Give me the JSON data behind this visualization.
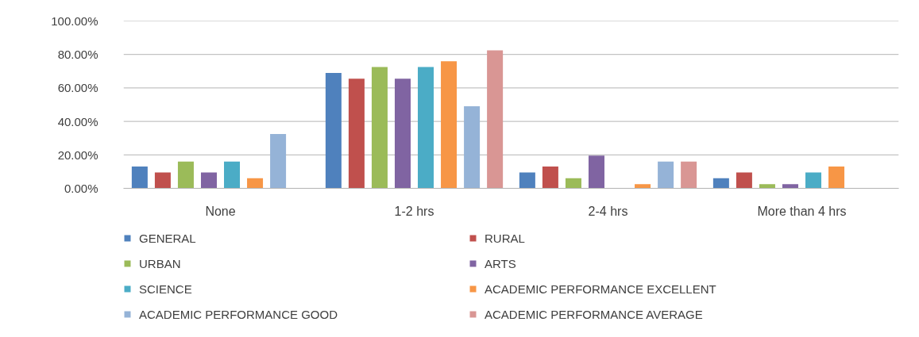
{
  "chart_data": {
    "type": "bar",
    "categories": [
      "None",
      "1-2 hrs",
      "2-4 hrs",
      "More than 4 hrs"
    ],
    "ylim": [
      0,
      100
    ],
    "yticks": [
      {
        "value": 0,
        "label": "0.00%"
      },
      {
        "value": 20,
        "label": "20.00%"
      },
      {
        "value": 40,
        "label": "40.00%"
      },
      {
        "value": 60,
        "label": "60.00%"
      },
      {
        "value": 80,
        "label": "80.00%"
      },
      {
        "value": 100,
        "label": "100.00%"
      }
    ],
    "grid": "y",
    "legend": "bottom",
    "series": [
      {
        "name": "GENERAL",
        "color": "#4f81bd",
        "values": [
          13,
          69,
          9.5,
          6
        ]
      },
      {
        "name": "RURAL",
        "color": "#c0504d",
        "values": [
          9.5,
          65.5,
          13,
          9.5
        ]
      },
      {
        "name": "URBAN",
        "color": "#9bbb59",
        "values": [
          16,
          72.5,
          6,
          2.5
        ]
      },
      {
        "name": "ARTS",
        "color": "#8064a2",
        "values": [
          9.5,
          65.5,
          19.5,
          2.5
        ]
      },
      {
        "name": "SCIENCE",
        "color": "#4bacc6",
        "values": [
          16,
          72.5,
          0,
          9.5
        ]
      },
      {
        "name": "ACADEMIC PERFORMANCE EXCELLENT",
        "color": "#f79646",
        "values": [
          6,
          76,
          2.5,
          13
        ]
      },
      {
        "name": "ACADEMIC PERFORMANCE GOOD",
        "color": "#95b3d7",
        "values": [
          32.5,
          49,
          16,
          0
        ]
      },
      {
        "name": "ACADEMIC PERFORMANCE AVERAGE",
        "color": "#d99694",
        "values": [
          0,
          82.5,
          16,
          0
        ]
      }
    ]
  }
}
